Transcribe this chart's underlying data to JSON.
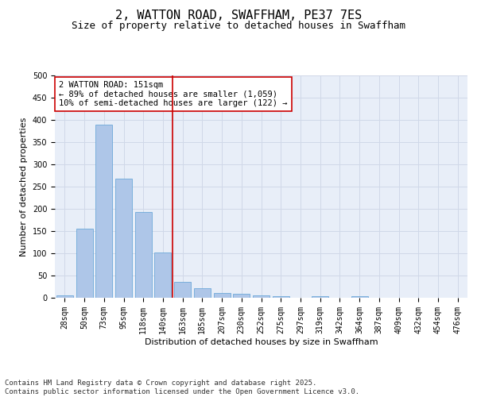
{
  "title_line1": "2, WATTON ROAD, SWAFFHAM, PE37 7ES",
  "title_line2": "Size of property relative to detached houses in Swaffham",
  "xlabel": "Distribution of detached houses by size in Swaffham",
  "ylabel": "Number of detached properties",
  "categories": [
    "28sqm",
    "50sqm",
    "73sqm",
    "95sqm",
    "118sqm",
    "140sqm",
    "163sqm",
    "185sqm",
    "207sqm",
    "230sqm",
    "252sqm",
    "275sqm",
    "297sqm",
    "319sqm",
    "342sqm",
    "364sqm",
    "387sqm",
    "409sqm",
    "432sqm",
    "454sqm",
    "476sqm"
  ],
  "values": [
    5,
    155,
    390,
    268,
    193,
    102,
    36,
    22,
    11,
    9,
    5,
    3,
    0,
    4,
    0,
    4,
    0,
    0,
    0,
    0,
    0
  ],
  "bar_color": "#aec6e8",
  "bar_edge_color": "#5a9fd4",
  "grid_color": "#d0d8e8",
  "background_color": "#e8eef8",
  "vline_x": 5.5,
  "vline_color": "#cc0000",
  "annotation_text": "2 WATTON ROAD: 151sqm\n← 89% of detached houses are smaller (1,059)\n10% of semi-detached houses are larger (122) →",
  "annotation_box_color": "#ffffff",
  "annotation_box_edge_color": "#cc0000",
  "ylim": [
    0,
    500
  ],
  "yticks": [
    0,
    50,
    100,
    150,
    200,
    250,
    300,
    350,
    400,
    450,
    500
  ],
  "footnote": "Contains HM Land Registry data © Crown copyright and database right 2025.\nContains public sector information licensed under the Open Government Licence v3.0.",
  "title_fontsize": 11,
  "subtitle_fontsize": 9,
  "axis_label_fontsize": 8,
  "tick_fontsize": 7,
  "annotation_fontsize": 7.5,
  "footnote_fontsize": 6.5
}
